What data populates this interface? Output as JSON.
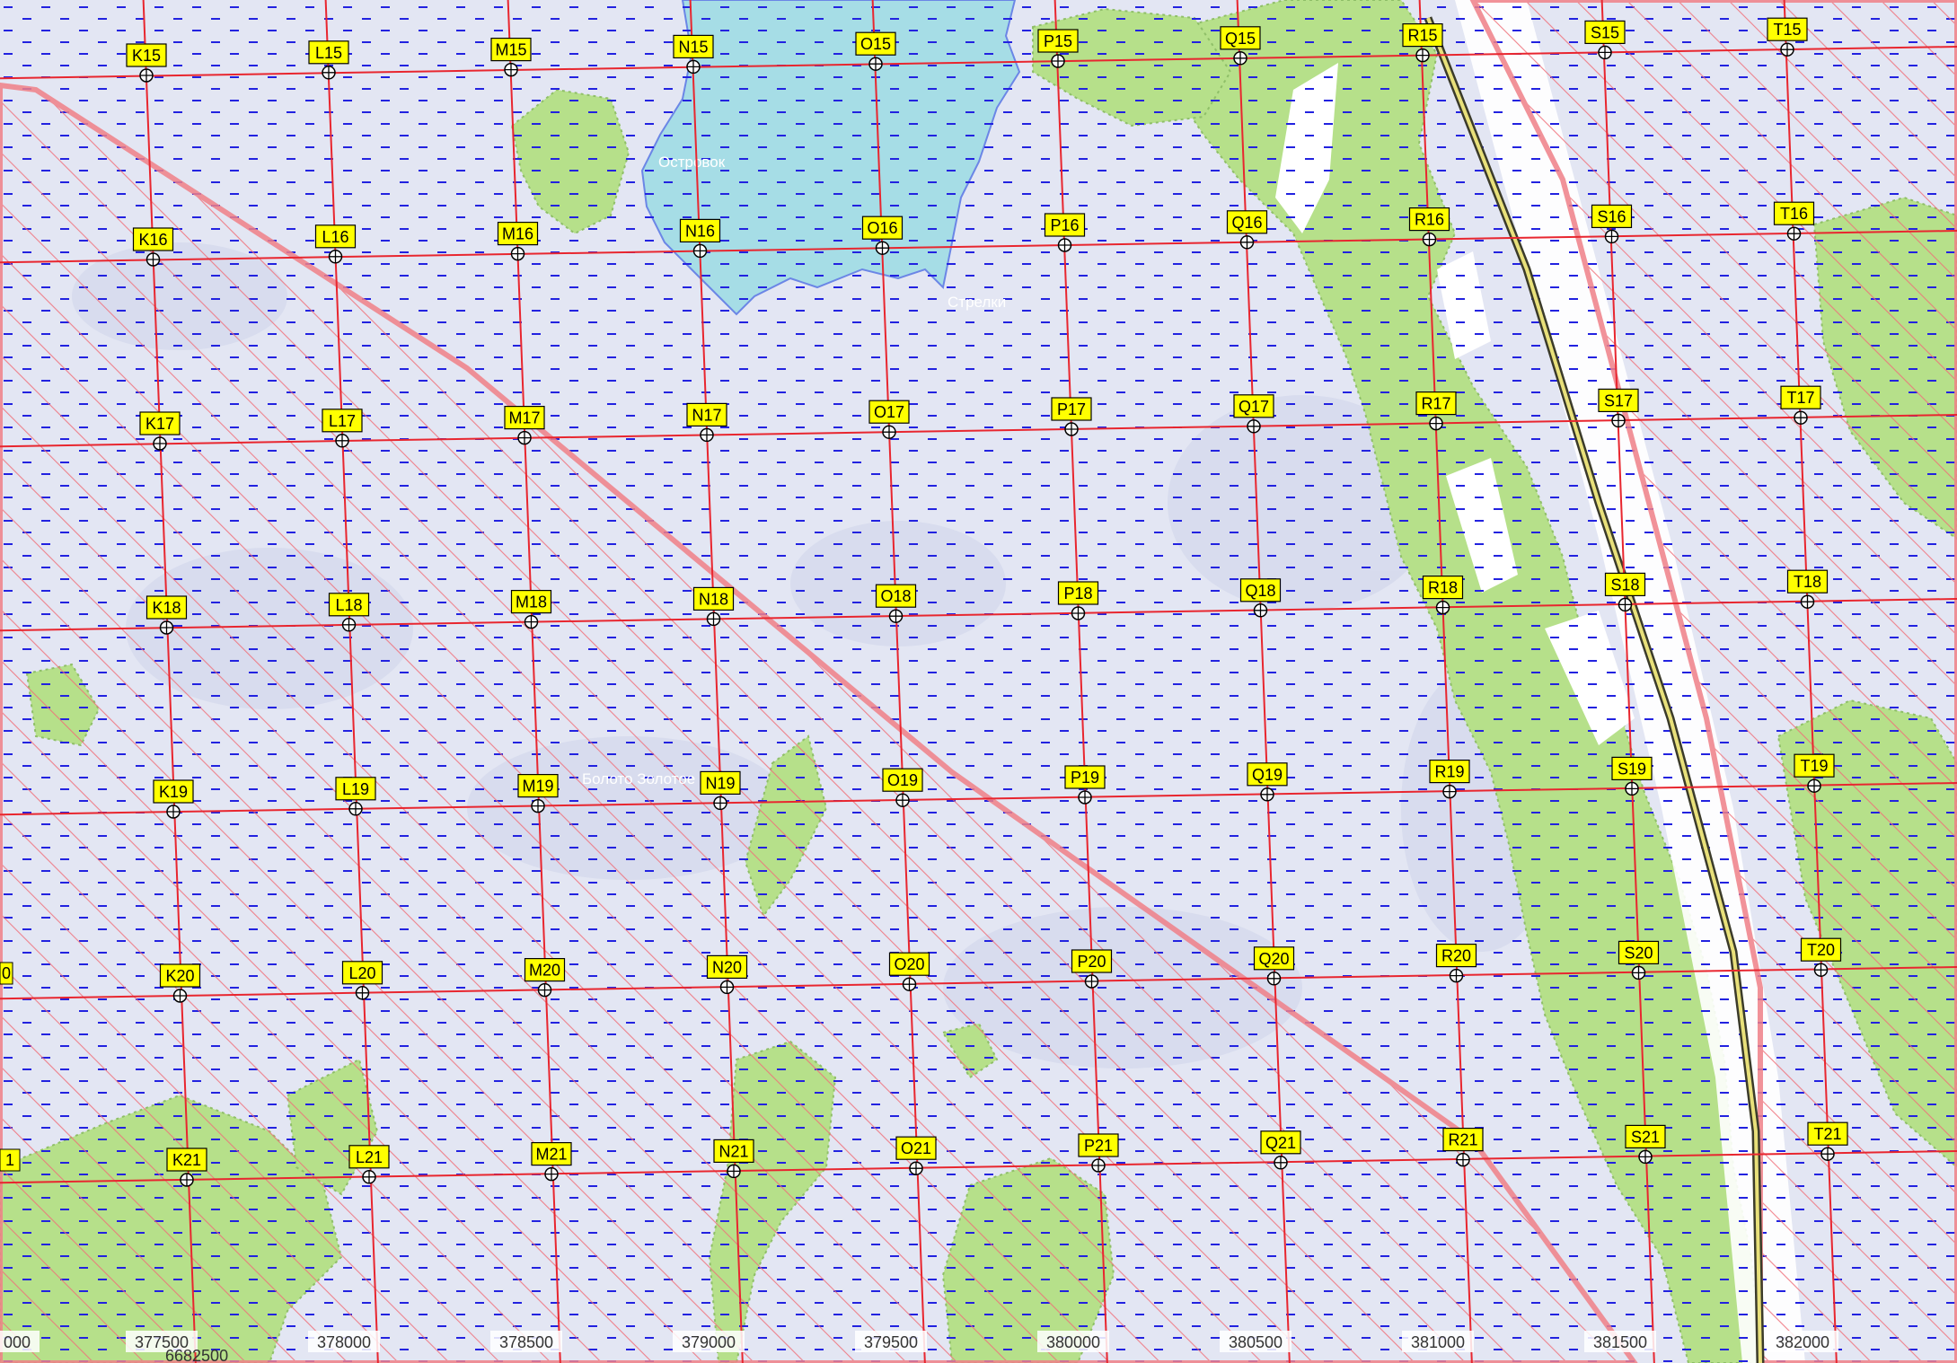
{
  "colors": {
    "swamp": "#e3e6f3",
    "swamp_dark": "#d5d9ec",
    "forest": "#b6e08a",
    "forest_dark": "#9ccf70",
    "water": "#a6dde6",
    "water_edge": "#6b86e6",
    "grid_line": "#e8262f",
    "hatch": "#f0707a",
    "marsh_dash": "#2222e0",
    "label_bg": "#ffff00",
    "road_fill": "#e8e07a",
    "road_edge": "#3b3b2a"
  },
  "place_names": {
    "lake": "Островок",
    "bay": "Стрелки",
    "bog": "Болото Золотое"
  },
  "grid": {
    "cols": [
      "K",
      "L",
      "M",
      "N",
      "O",
      "P",
      "Q",
      "R",
      "S",
      "T"
    ],
    "rows": [
      "15",
      "16",
      "17",
      "18",
      "19",
      "20",
      "21"
    ],
    "edge_labels": [
      {
        "id": "left-20",
        "text": "0"
      },
      {
        "id": "left-21",
        "text": "1"
      }
    ]
  },
  "axis": {
    "x_ticks": [
      "000",
      "377500",
      "378000",
      "378500",
      "379000",
      "379500",
      "380000",
      "380500",
      "381000",
      "381500",
      "382000"
    ],
    "y_tick": "6682500"
  }
}
